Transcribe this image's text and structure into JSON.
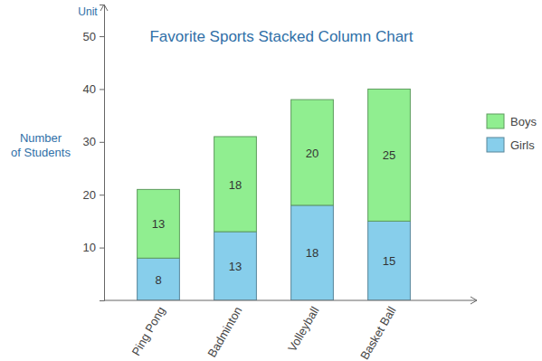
{
  "chart_data": {
    "type": "bar",
    "title": "Favorite Sports Stacked Column Chart",
    "y_label": "Number of Students",
    "y_unit": "Unit",
    "categories": [
      "Ping Pong",
      "Badminton",
      "Volleyball",
      "Basket Ball"
    ],
    "series": [
      {
        "name": "Girls",
        "color": "#87ceeb",
        "values": [
          8,
          13,
          18,
          15
        ]
      },
      {
        "name": "Boys",
        "color": "#90ee90",
        "values": [
          13,
          18,
          20,
          25
        ]
      }
    ],
    "ylim": [
      0,
      56
    ],
    "yticks": [
      10,
      20,
      30,
      40,
      50
    ],
    "stacked": true,
    "data_labels": true,
    "grid": false,
    "legend": "right"
  }
}
